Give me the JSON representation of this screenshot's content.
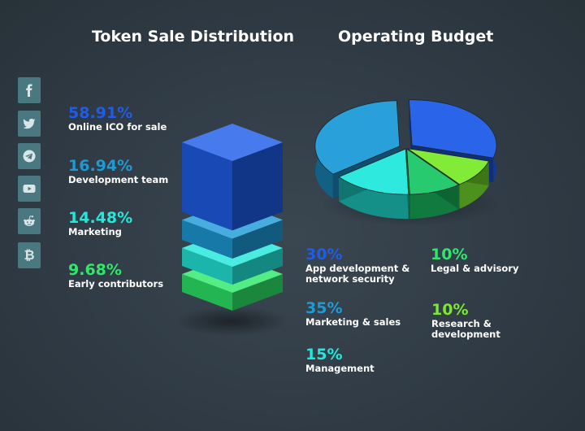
{
  "titles": {
    "token_sale": "Token Sale Distribution",
    "operating_budget": "Operating Budget"
  },
  "social_icons": [
    "facebook-icon",
    "twitter-icon",
    "telegram-icon",
    "youtube-icon",
    "reddit-icon",
    "bitcoin-icon"
  ],
  "colors": {
    "background": "#2f3a44",
    "social_bg": "#4a7880",
    "blue": "#1f5de8",
    "sky": "#1e9bd7",
    "cyan": "#22e8dc",
    "green": "#2ee86a",
    "lime": "#7aea2e"
  },
  "chart_data": [
    {
      "type": "bar",
      "title": "Token Sale Distribution",
      "categories": [
        "Online ICO for sale",
        "Development team",
        "Marketing",
        "Early contributors"
      ],
      "values": [
        58.91,
        16.94,
        14.48,
        9.68
      ],
      "value_labels": [
        "58.91%",
        "16.94%",
        "14.48%",
        "9.68%"
      ],
      "colors": [
        "#1f5de8",
        "#1e9bd7",
        "#22e8dc",
        "#2ee86a"
      ]
    },
    {
      "type": "pie",
      "title": "Operating Budget",
      "categories": [
        "App development & network security",
        "Legal & advisory",
        "Marketing & sales",
        "Research & development",
        "Management"
      ],
      "label_lines": [
        [
          "App development &",
          "network security"
        ],
        [
          "Legal & advisory"
        ],
        [
          "Marketing & sales"
        ],
        [
          "Research &",
          "development"
        ],
        [
          "Management"
        ]
      ],
      "values": [
        30,
        10,
        35,
        10,
        15
      ],
      "value_labels": [
        "30%",
        "10%",
        "35%",
        "10%",
        "15%"
      ],
      "colors": [
        "#1f5de8",
        "#1cc766",
        "#1e9bd7",
        "#7aea2e",
        "#22e8dc"
      ]
    }
  ]
}
